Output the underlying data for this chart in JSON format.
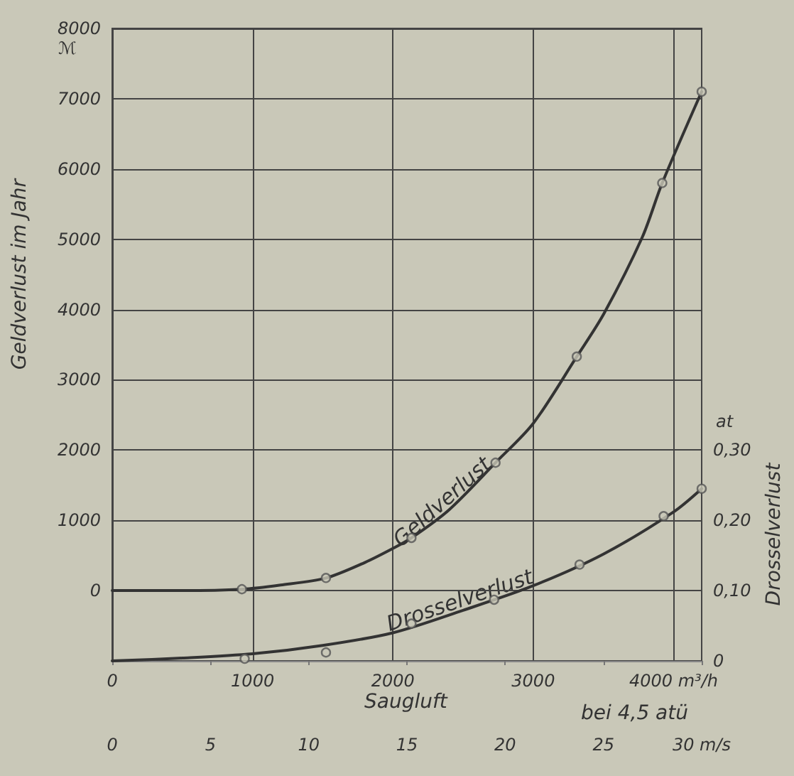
{
  "chart_data": {
    "type": "line",
    "xlabel": "Saugluft",
    "ylabel": "Geldverlust im Jahr",
    "y2label": "Drosselverlust",
    "x2label": "bei 4,5 atü",
    "annotations": [
      "ℳ",
      "at"
    ],
    "xlim": [
      0,
      4200
    ],
    "xticks": [
      0,
      1000,
      2000,
      3000,
      {
        "value": 4000,
        "label": "4000 m³/h"
      }
    ],
    "x2lim": [
      0,
      30
    ],
    "x2ticks": [
      0,
      5,
      10,
      15,
      20,
      25,
      {
        "value": 30,
        "label": "30 m/s"
      }
    ],
    "ylim": [
      -1000,
      8000
    ],
    "yticks": [
      0,
      1000,
      2000,
      3000,
      4000,
      5000,
      6000,
      7000,
      8000
    ],
    "y2lim": [
      0,
      0.9
    ],
    "y2ticks": [
      0,
      {
        "value": 0.1,
        "label": "0,10"
      },
      {
        "value": 0.2,
        "label": "0,20"
      },
      {
        "value": 0.3,
        "label": "0,30"
      }
    ],
    "grid": true,
    "legend": false,
    "marker": "none",
    "line_style": "solid",
    "series": [
      {
        "name": "Geldverlust",
        "color": "#333333",
        "x": [
          0,
          500,
          924,
          1200,
          1523,
          1800,
          2000,
          2132,
          2400,
          2731,
          3000,
          3310,
          3503,
          3777,
          3919,
          4200
        ],
        "values": [
          0,
          0,
          20,
          80,
          180,
          400,
          600,
          750,
          1150,
          1820,
          2380,
          3330,
          3940,
          5030,
          5800,
          7100
        ]
      },
      {
        "name": "Drosselverlust",
        "color": "#333333",
        "axis": "y2",
        "x": [
          0,
          500,
          1000,
          1500,
          2000,
          2500,
          3000,
          3500,
          4000,
          4200
        ],
        "values": [
          0,
          0.004,
          0.01,
          0.022,
          0.04,
          0.072,
          0.107,
          0.152,
          0.212,
          0.245
        ]
      },
      {
        "type": "scatter",
        "color": "#555555",
        "marker": "circle",
        "x": [
          924,
          1523,
          2132,
          2731,
          3310,
          3919,
          4200
        ],
        "values": [
          20,
          180,
          750,
          1820,
          3330,
          5800,
          7100
        ]
      },
      {
        "type": "scatter",
        "color": "#555555",
        "marker": "circle",
        "axis": "y2",
        "x": [
          944,
          1523,
          2132,
          2721,
          3330,
          3929,
          4200
        ],
        "values": [
          0.003,
          0.012,
          0.053,
          0.087,
          0.137,
          0.206,
          0.245
        ]
      }
    ]
  }
}
